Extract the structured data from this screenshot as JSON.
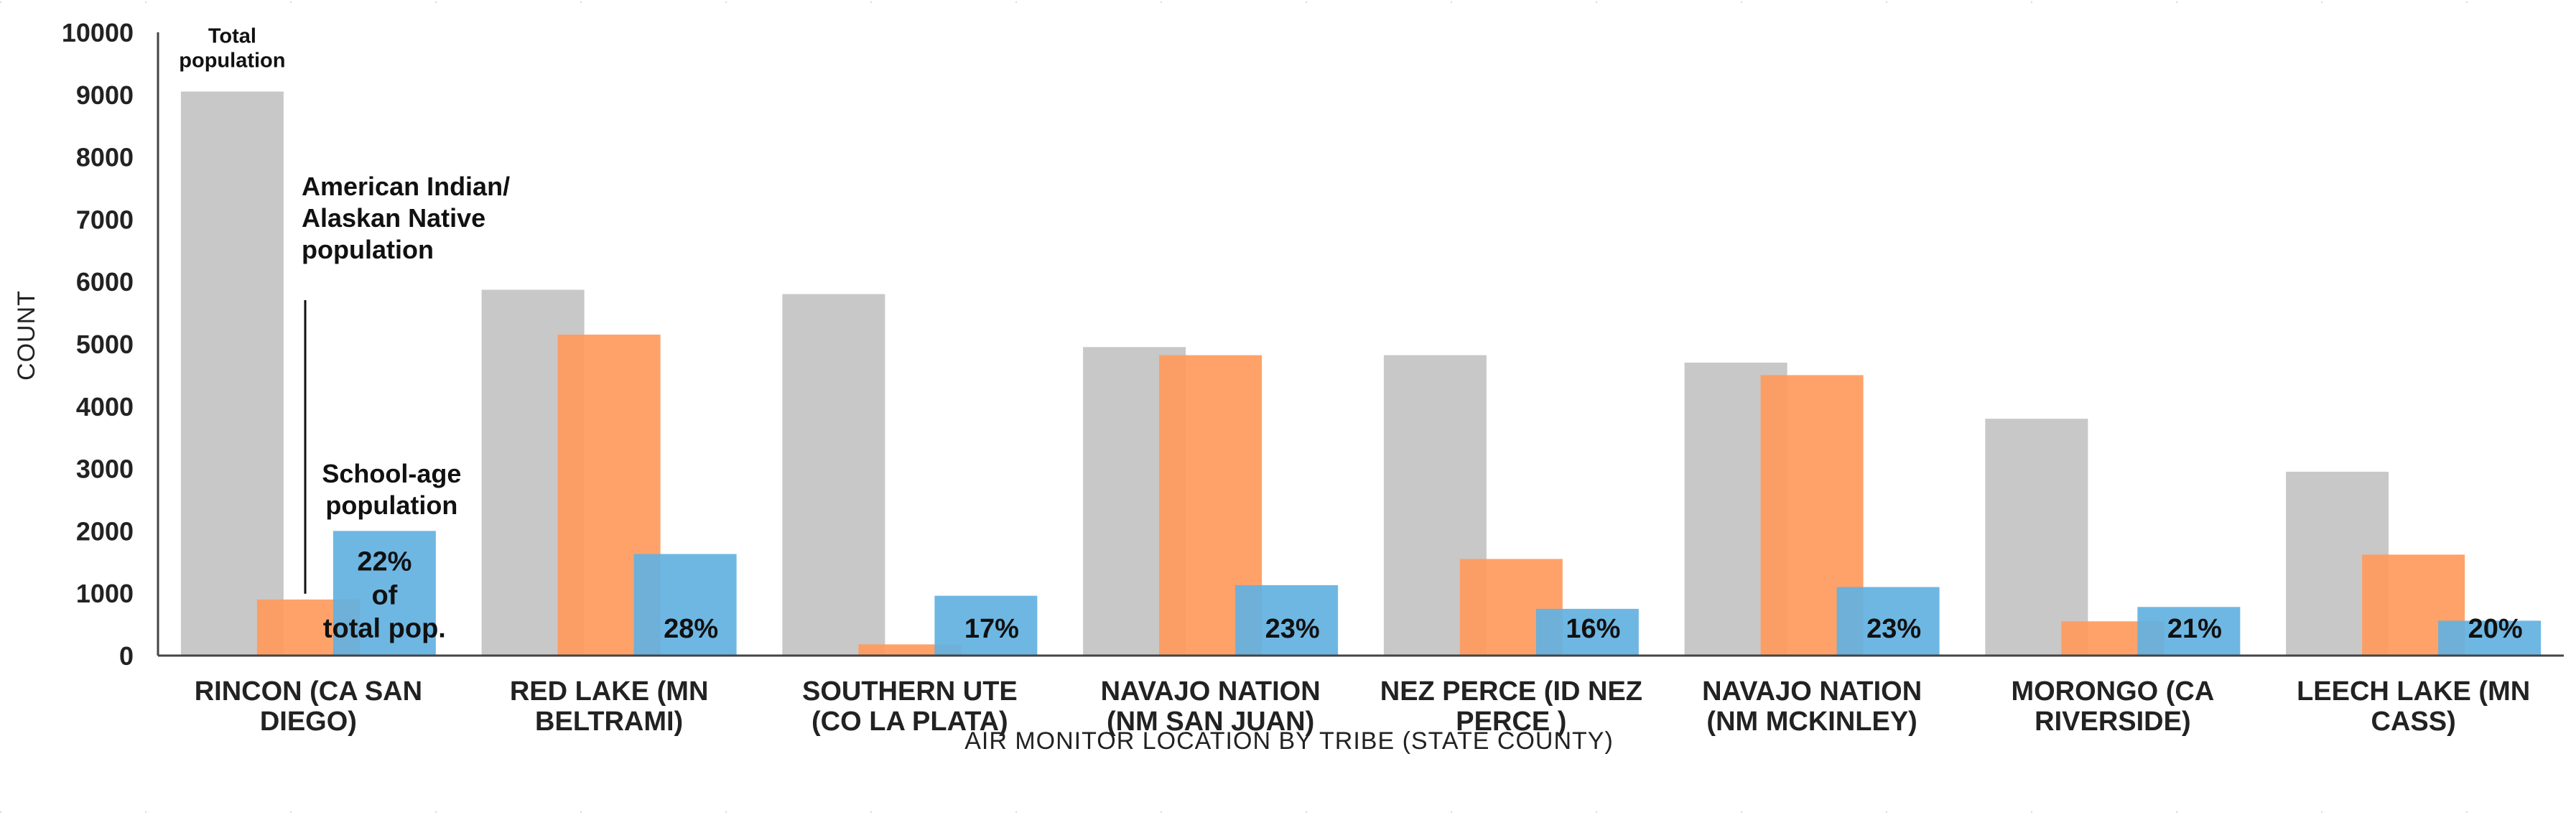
{
  "chart_data": {
    "type": "bar",
    "title": "",
    "xlabel": "AIR MONITOR LOCATION BY TRIBE (STATE COUNTY)",
    "ylabel": "COUNT",
    "ylim": [
      0,
      10000
    ],
    "yticks": [
      0,
      1000,
      2000,
      3000,
      4000,
      5000,
      6000,
      7000,
      8000,
      9000,
      10000
    ],
    "categories": [
      [
        "RINCON (CA SAN",
        "DIEGO)"
      ],
      [
        "RED LAKE (MN",
        "BELTRAMI)"
      ],
      [
        "SOUTHERN UTE",
        "(CO LA PLATA)"
      ],
      [
        "NAVAJO NATION",
        "(NM SAN JUAN)"
      ],
      [
        "NEZ PERCE (ID NEZ",
        "PERCE )"
      ],
      [
        "NAVAJO NATION",
        "(NM MCKINLEY)"
      ],
      [
        "MORONGO (CA",
        "RIVERSIDE)"
      ],
      [
        "LEECH LAKE (MN",
        "CASS)"
      ]
    ],
    "series": [
      {
        "key": "total",
        "values": [
          9050,
          5870,
          5800,
          4950,
          4820,
          4700,
          3800,
          2950
        ],
        "color": "#c8c8c8"
      },
      {
        "key": "aian",
        "values": [
          900,
          5150,
          180,
          4820,
          1550,
          4500,
          550,
          1620
        ],
        "color": "#ff9a5c"
      },
      {
        "key": "school",
        "values": [
          2000,
          1630,
          960,
          1130,
          750,
          1100,
          780,
          560
        ],
        "color": "#62b1e1"
      }
    ],
    "school_pct_labels": [
      "22%",
      "28%",
      "17%",
      "23%",
      "16%",
      "23%",
      "21%",
      "20%"
    ],
    "first_pct_suffix": [
      "of",
      "total pop."
    ],
    "annotations": {
      "total": [
        "Total",
        "population"
      ],
      "aian": [
        "American Indian/",
        "Alaskan Native",
        "population"
      ],
      "school": [
        "School-age",
        "population"
      ]
    }
  }
}
